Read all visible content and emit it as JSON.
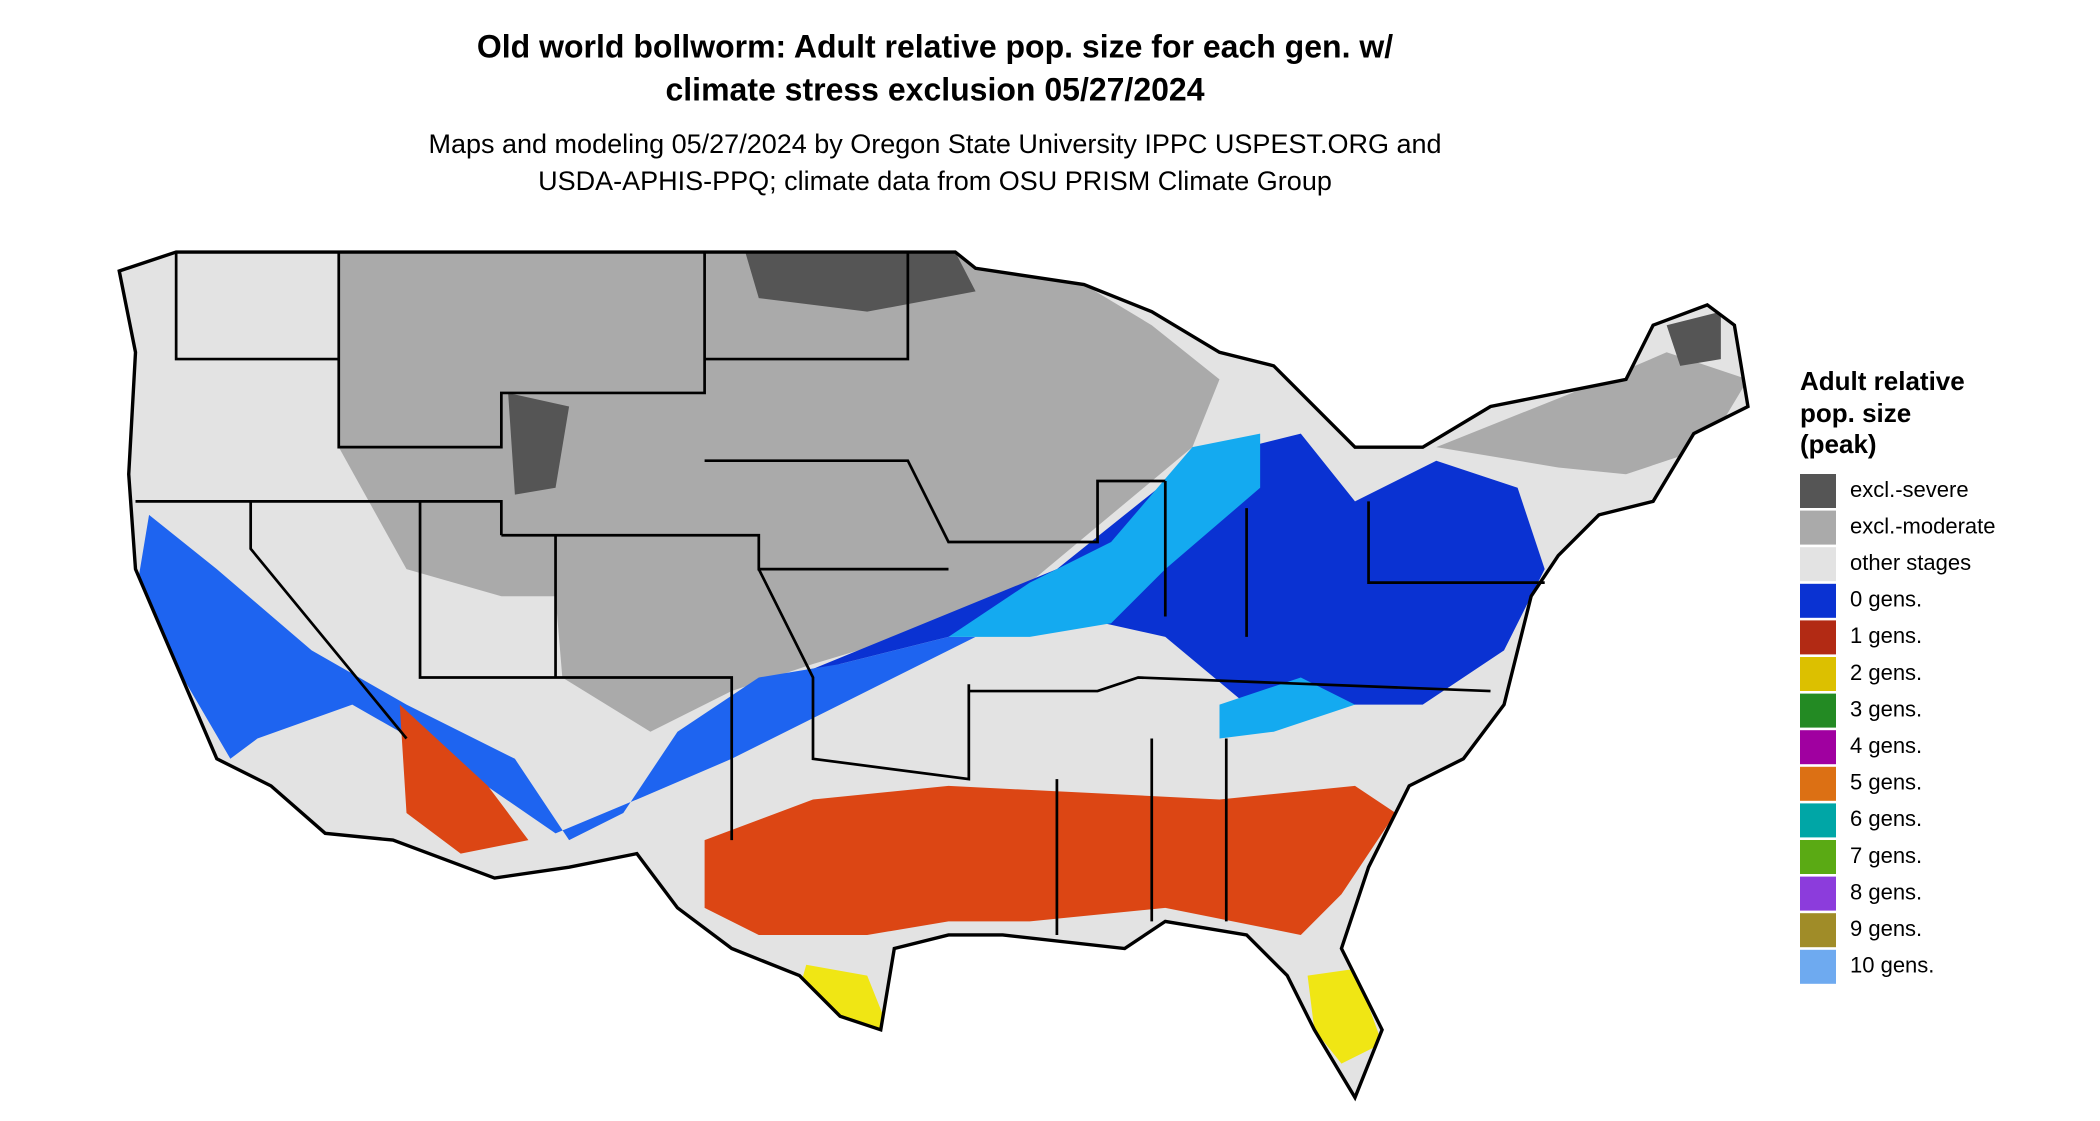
{
  "header": {
    "title": [
      "Old world bollworm: Adult relative pop. size for each gen. w/",
      "climate stress exclusion 05/27/2024"
    ],
    "subtitle": [
      "Maps and modeling 05/27/2024 by Oregon State University IPPC USPEST.ORG and",
      "USDA-APHIS-PPQ; climate data from OSU PRISM Climate Group"
    ]
  },
  "legend": {
    "title": [
      "Adult relative",
      "pop. size",
      "(peak)"
    ],
    "items": [
      {
        "label": "excl.-severe",
        "color": "#555555"
      },
      {
        "label": "excl.-moderate",
        "color": "#aaaaaa"
      },
      {
        "label": "other stages",
        "color": "#e3e3e3"
      },
      {
        "label": "0 gens.",
        "color": "#0a32d2"
      },
      {
        "label": "1 gens.",
        "color": "#b22a14"
      },
      {
        "label": "2 gens.",
        "color": "#dcc000"
      },
      {
        "label": "3 gens.",
        "color": "#238a23"
      },
      {
        "label": "4 gens.",
        "color": "#a000a0"
      },
      {
        "label": "5 gens.",
        "color": "#dc7014"
      },
      {
        "label": "6 gens.",
        "color": "#00a6a6"
      },
      {
        "label": "7 gens.",
        "color": "#5aaa14"
      },
      {
        "label": "8 gens.",
        "color": "#8c3cdc"
      },
      {
        "label": "9 gens.",
        "color": "#a08c28"
      },
      {
        "label": "10 gens.",
        "color": "#6eaaf0"
      }
    ]
  }
}
